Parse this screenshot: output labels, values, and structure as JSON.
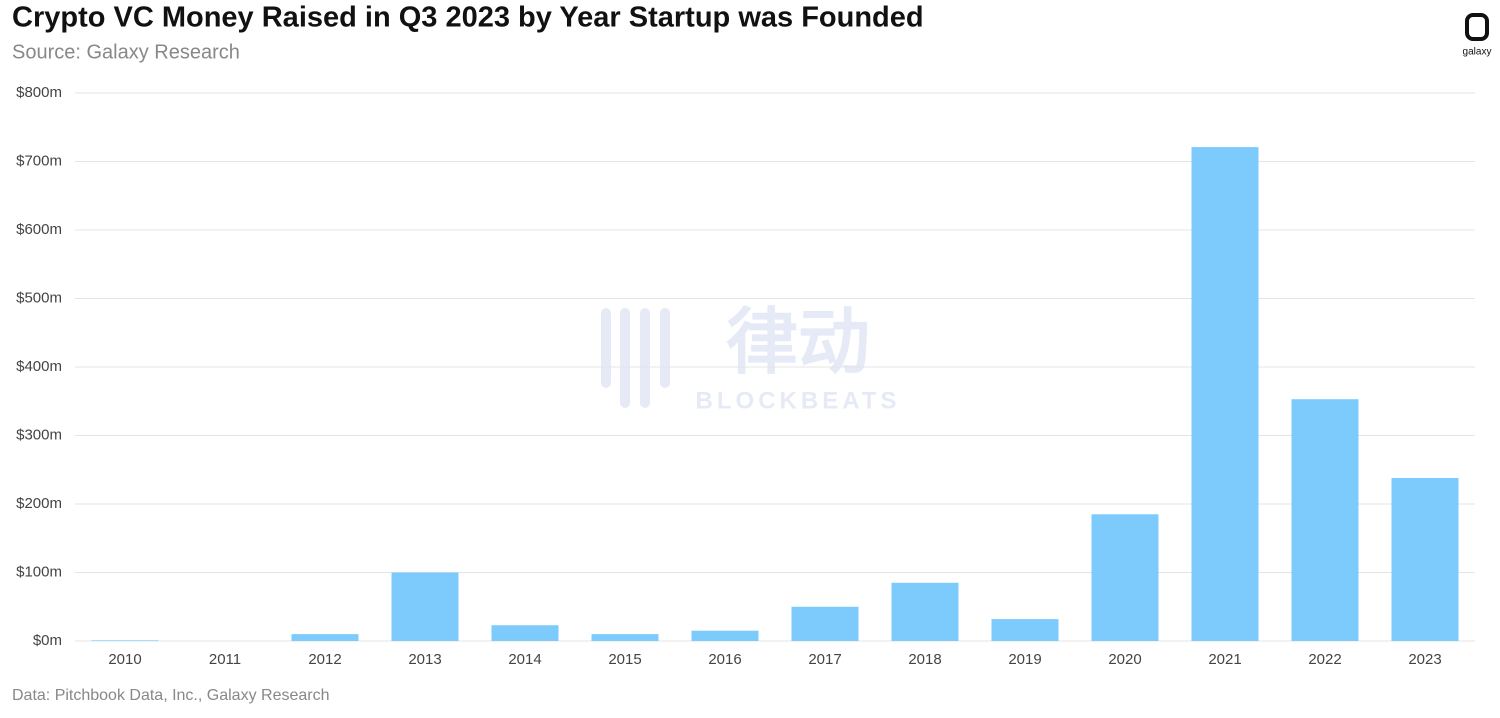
{
  "chart_data": {
    "type": "bar",
    "title": "Crypto VC Money Raised in Q3 2023 by Year Startup was Founded",
    "subtitle": "Source: Galaxy Research",
    "caption": "Data: Pitchbook Data, Inc., Galaxy Research",
    "categories": [
      "2010",
      "2011",
      "2012",
      "2013",
      "2014",
      "2015",
      "2016",
      "2017",
      "2018",
      "2019",
      "2020",
      "2021",
      "2022",
      "2023"
    ],
    "values": [
      1,
      0,
      10,
      100,
      23,
      10,
      15,
      50,
      85,
      32,
      185,
      721,
      353,
      238
    ],
    "color": "#7dcbfc",
    "ylim": [
      0,
      800
    ],
    "yticks": [
      {
        "value": 0,
        "label": "$0m"
      },
      {
        "value": 100,
        "label": "$100m"
      },
      {
        "value": 200,
        "label": "$200m"
      },
      {
        "value": 300,
        "label": "$300m"
      },
      {
        "value": 400,
        "label": "$400m"
      },
      {
        "value": 500,
        "label": "$500m"
      },
      {
        "value": 600,
        "label": "$600m"
      },
      {
        "value": 700,
        "label": "$700m"
      },
      {
        "value": 800,
        "label": "$800m"
      }
    ],
    "grid": true
  },
  "logo_text": "galaxy",
  "watermark": "律动",
  "watermark_sub": "BLOCKBEATS"
}
